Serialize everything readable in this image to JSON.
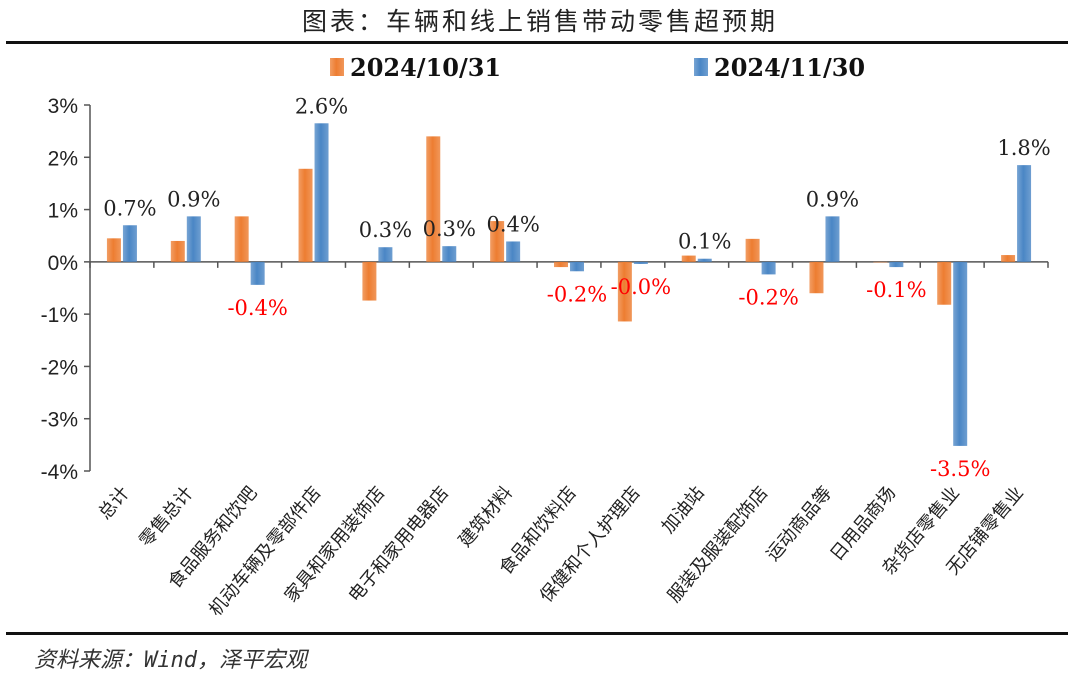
{
  "title": "图表：车辆和线上销售带动零售超预期",
  "source": "资料来源：Wind，泽平宏观",
  "chart_data": {
    "type": "bar",
    "categories": [
      "总计",
      "零售总计",
      "食品服务和饮吧",
      "机动车辆及零部件店",
      "家具和家用装饰店",
      "电子和家用电器店",
      "建筑材料",
      "食品和饮料店",
      "保健和个人护理店",
      "加油站",
      "服装及服装配饰店",
      "运动商品等",
      "日用品商场",
      "杂货店零售业",
      "无店铺零售业"
    ],
    "series": [
      {
        "name": "2024/10/31",
        "color": "#ED7D31",
        "values": [
          0.45,
          0.4,
          0.87,
          1.78,
          -0.74,
          2.4,
          0.78,
          -0.1,
          -1.14,
          0.12,
          0.44,
          -0.6,
          0.0,
          -0.82,
          0.13
        ]
      },
      {
        "name": "2024/11/30",
        "color": "#4A86C5",
        "values": [
          0.7,
          0.87,
          -0.44,
          2.65,
          0.28,
          0.3,
          0.39,
          -0.18,
          -0.04,
          0.06,
          -0.24,
          0.87,
          -0.1,
          -3.52,
          1.85
        ]
      }
    ],
    "data_labels": [
      "0.7%",
      "0.9%",
      "-0.4%",
      "2.6%",
      "0.3%",
      "0.3%",
      "0.4%",
      "-0.2%",
      "-0.0%",
      "0.1%",
      "-0.2%",
      "0.9%",
      "-0.1%",
      "-3.5%",
      "1.8%"
    ],
    "yticks": [
      "3%",
      "2%",
      "1%",
      "0%",
      "-1%",
      "-2%",
      "-3%",
      "-4%"
    ],
    "ylim": [
      -4,
      3
    ],
    "legend": "top",
    "grid": false,
    "positive_label_color": "#222222",
    "negative_label_color": "#FF0000"
  }
}
